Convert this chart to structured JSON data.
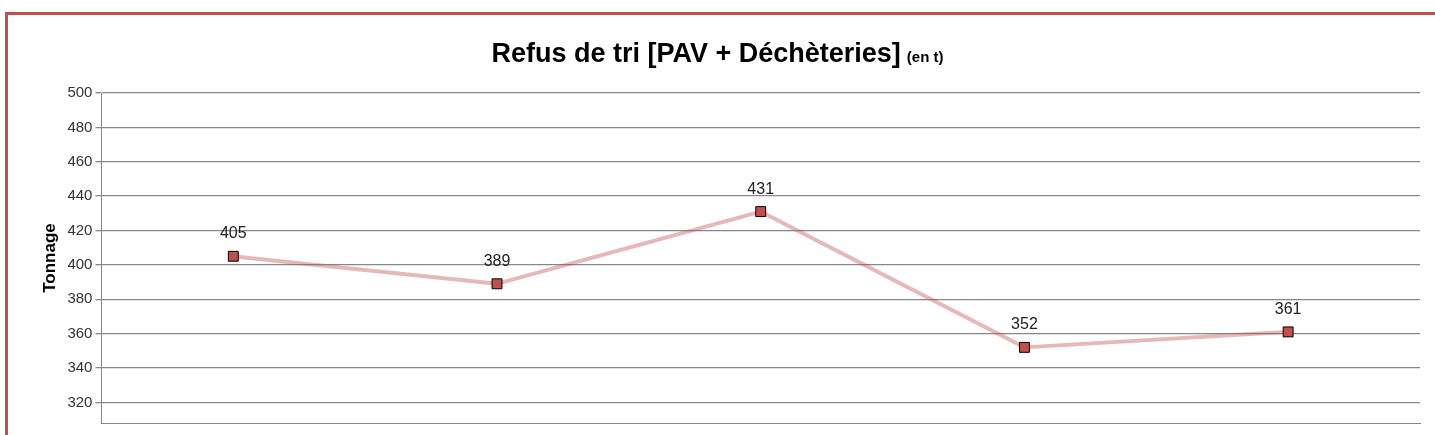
{
  "chart_data": {
    "type": "line",
    "title": "Refus de tri [PAV + Déchèteries]",
    "subtitle": "(en t)",
    "ylabel": "Tonnage",
    "categories": [
      null,
      null,
      null,
      null,
      null
    ],
    "series": [
      {
        "color": "#c0504d",
        "values": [
          405,
          389,
          431,
          352,
          361
        ]
      }
    ],
    "ylim": [
      308,
      500
    ],
    "yticks": [
      320,
      340,
      360,
      380,
      400,
      420,
      440,
      460,
      480,
      500
    ],
    "grid": "y",
    "marker": "square",
    "line_style": "solid",
    "data_labels": true,
    "legend": false,
    "tick_labels": "y"
  }
}
